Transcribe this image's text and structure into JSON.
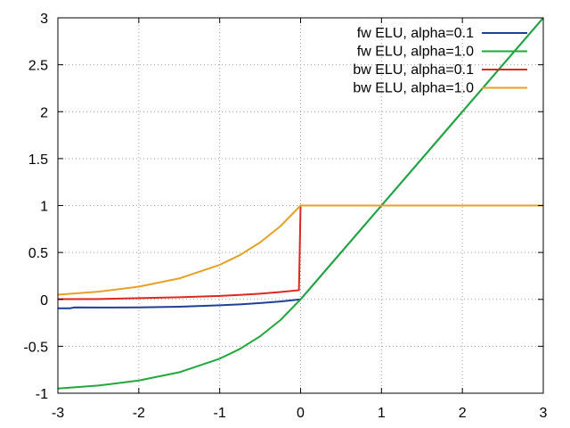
{
  "chart_data": {
    "type": "line",
    "title": "",
    "xlabel": "",
    "ylabel": "",
    "xlim": [
      -3,
      3
    ],
    "ylim": [
      -1,
      3
    ],
    "x_ticks": [
      -3,
      -2,
      -1,
      0,
      1,
      2,
      3
    ],
    "y_ticks": [
      -1,
      -0.5,
      0,
      0.5,
      1,
      1.5,
      2,
      2.5,
      3
    ],
    "x_tick_labels": [
      "-3",
      "-2",
      "-1",
      "0",
      "1",
      "2",
      "3"
    ],
    "y_tick_labels": [
      "-1",
      "-0.5",
      "0",
      "0.5",
      "1",
      "1.5",
      "2",
      "2.5",
      "3"
    ],
    "grid": true,
    "legend_position": "top-right",
    "series": [
      {
        "name": "fw ELU, alpha=0.1",
        "color": "#1f3f99",
        "x": [
          -3,
          -2.85,
          -2.8,
          -2.5,
          -2.0,
          -1.5,
          -1.0,
          -0.75,
          -0.5,
          -0.25,
          0,
          1,
          2,
          3
        ],
        "y": [
          -0.095,
          -0.095,
          -0.086,
          -0.087,
          -0.086,
          -0.078,
          -0.063,
          -0.053,
          -0.039,
          -0.022,
          0,
          1,
          2,
          3
        ]
      },
      {
        "name": "fw ELU, alpha=1.0",
        "color": "#1fa83b",
        "x": [
          -3,
          -2.5,
          -2.0,
          -1.5,
          -1.0,
          -0.75,
          -0.5,
          -0.25,
          0,
          1,
          2,
          3
        ],
        "y": [
          -0.95,
          -0.918,
          -0.865,
          -0.777,
          -0.632,
          -0.528,
          -0.393,
          -0.221,
          0,
          1,
          2,
          3
        ]
      },
      {
        "name": "bw ELU, alpha=0.1",
        "color": "#e0271f",
        "x": [
          -3,
          -2.5,
          -2.0,
          -1.5,
          -1.0,
          -0.75,
          -0.5,
          -0.25,
          -0.02,
          0,
          3
        ],
        "y": [
          0.002,
          0.003,
          0.013,
          0.022,
          0.037,
          0.047,
          0.061,
          0.078,
          0.098,
          1,
          1
        ]
      },
      {
        "name": "bw ELU, alpha=1.0",
        "color": "#e6a024",
        "x": [
          -3,
          -2.5,
          -2.0,
          -1.5,
          -1.0,
          -0.75,
          -0.5,
          -0.25,
          0,
          3
        ],
        "y": [
          0.05,
          0.082,
          0.135,
          0.223,
          0.368,
          0.472,
          0.607,
          0.779,
          1,
          1
        ]
      }
    ]
  }
}
